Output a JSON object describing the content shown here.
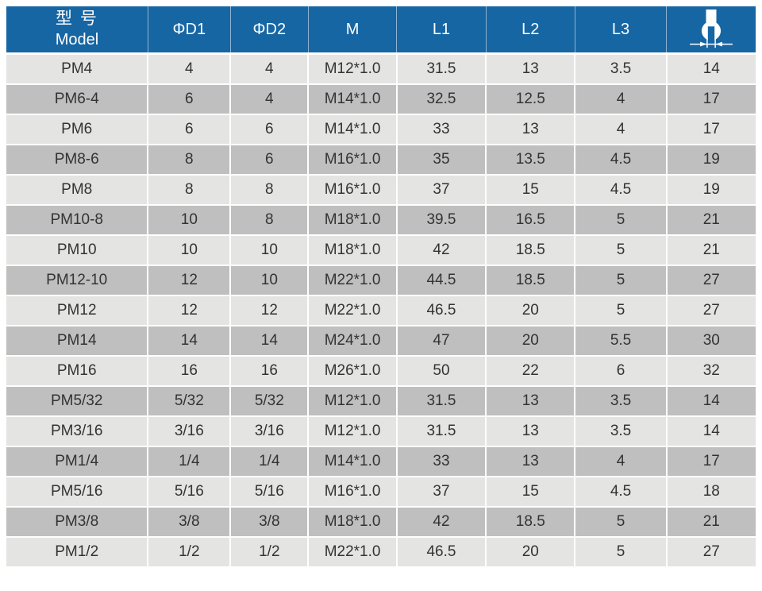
{
  "colors": {
    "header_bg": "#1666a3",
    "header_text": "#ffffff",
    "row_light": "#e4e4e2",
    "row_dark": "#bfbfbf",
    "grid_line": "#ffffff",
    "body_text": "#333333",
    "header_divider": "#8fb3d2"
  },
  "table": {
    "header": {
      "model_cn": "型 号",
      "model_en": "Model",
      "columns": [
        "ΦD1",
        "ΦD2",
        "M",
        "L1",
        "L2",
        "L3"
      ],
      "icon": "wrench-spanner-size-icon"
    },
    "rows": [
      [
        "PM4",
        "4",
        "4",
        "M12*1.0",
        "31.5",
        "13",
        "3.5",
        "14"
      ],
      [
        "PM6-4",
        "6",
        "4",
        "M14*1.0",
        "32.5",
        "12.5",
        "4",
        "17"
      ],
      [
        "PM6",
        "6",
        "6",
        "M14*1.0",
        "33",
        "13",
        "4",
        "17"
      ],
      [
        "PM8-6",
        "8",
        "6",
        "M16*1.0",
        "35",
        "13.5",
        "4.5",
        "19"
      ],
      [
        "PM8",
        "8",
        "8",
        "M16*1.0",
        "37",
        "15",
        "4.5",
        "19"
      ],
      [
        "PM10-8",
        "10",
        "8",
        "M18*1.0",
        "39.5",
        "16.5",
        "5",
        "21"
      ],
      [
        "PM10",
        "10",
        "10",
        "M18*1.0",
        "42",
        "18.5",
        "5",
        "21"
      ],
      [
        "PM12-10",
        "12",
        "10",
        "M22*1.0",
        "44.5",
        "18.5",
        "5",
        "27"
      ],
      [
        "PM12",
        "12",
        "12",
        "M22*1.0",
        "46.5",
        "20",
        "5",
        "27"
      ],
      [
        "PM14",
        "14",
        "14",
        "M24*1.0",
        "47",
        "20",
        "5.5",
        "30"
      ],
      [
        "PM16",
        "16",
        "16",
        "M26*1.0",
        "50",
        "22",
        "6",
        "32"
      ],
      [
        "PM5/32",
        "5/32",
        "5/32",
        "M12*1.0",
        "31.5",
        "13",
        "3.5",
        "14"
      ],
      [
        "PM3/16",
        "3/16",
        "3/16",
        "M12*1.0",
        "31.5",
        "13",
        "3.5",
        "14"
      ],
      [
        "PM1/4",
        "1/4",
        "1/4",
        "M14*1.0",
        "33",
        "13",
        "4",
        "17"
      ],
      [
        "PM5/16",
        "5/16",
        "5/16",
        "M16*1.0",
        "37",
        "15",
        "4.5",
        "18"
      ],
      [
        "PM3/8",
        "3/8",
        "3/8",
        "M18*1.0",
        "42",
        "18.5",
        "5",
        "21"
      ],
      [
        "PM1/2",
        "1/2",
        "1/2",
        "M22*1.0",
        "46.5",
        "20",
        "5",
        "27"
      ]
    ],
    "cell_names": [
      "cell-model",
      "cell-d1",
      "cell-d2",
      "cell-thread-m",
      "cell-l1",
      "cell-l2",
      "cell-l3",
      "cell-wrench-size"
    ]
  }
}
